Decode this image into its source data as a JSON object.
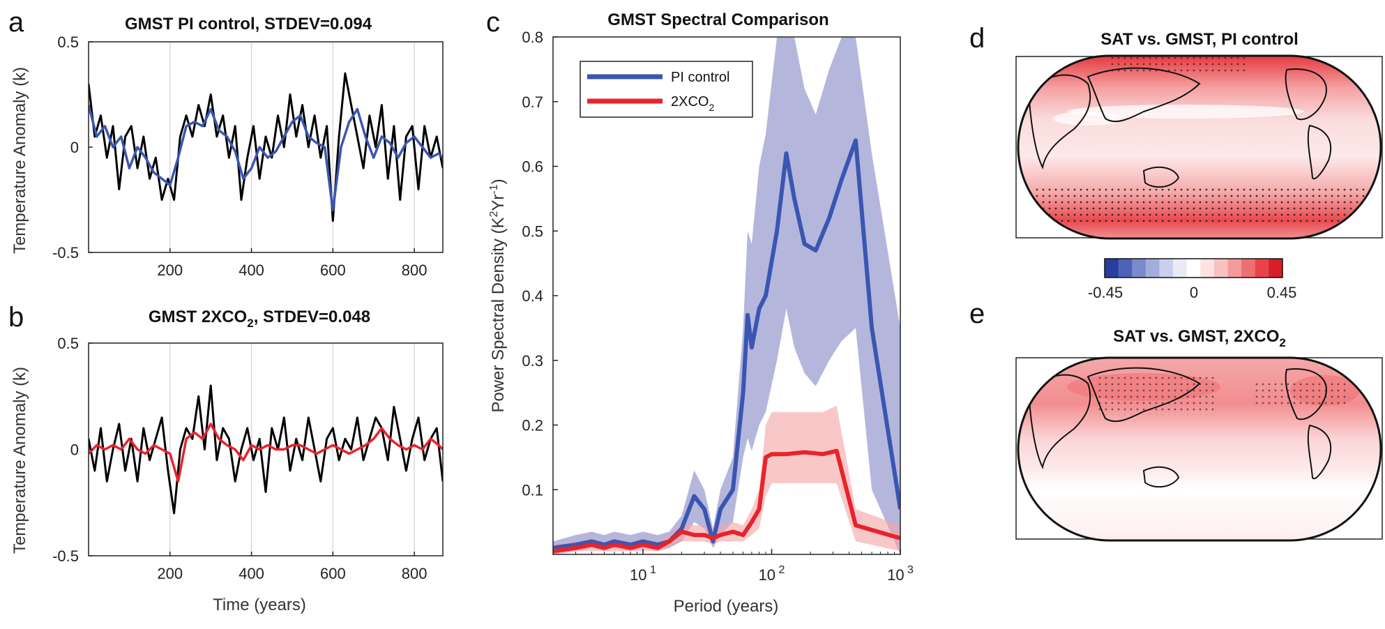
{
  "panels": {
    "a": "a",
    "b": "b",
    "c": "c",
    "d": "d",
    "e": "e"
  },
  "chart_data": [
    {
      "id": "a",
      "type": "line",
      "title": "GMST PI control, STDEV=0.094",
      "xlabel": "",
      "ylabel": "Temperature Anomaly (k)",
      "xlim": [
        0,
        870
      ],
      "ylim": [
        -0.5,
        0.5
      ],
      "xticks": [
        200,
        400,
        600,
        800
      ],
      "yticks": [
        -0.5,
        0,
        0.5
      ],
      "ytick_labels": [
        "-0.5",
        "0",
        "0.5"
      ],
      "grid": "vertical",
      "series": [
        {
          "role": "annual",
          "color": "#000000",
          "x": [
            0,
            15,
            30,
            45,
            60,
            75,
            90,
            105,
            120,
            135,
            150,
            165,
            180,
            195,
            210,
            225,
            240,
            255,
            270,
            285,
            300,
            315,
            330,
            345,
            360,
            375,
            390,
            405,
            420,
            435,
            450,
            465,
            480,
            495,
            510,
            525,
            540,
            555,
            570,
            585,
            600,
            615,
            630,
            645,
            660,
            675,
            690,
            705,
            720,
            735,
            750,
            765,
            780,
            795,
            810,
            825,
            840,
            855,
            870
          ],
          "y": [
            0.3,
            0.05,
            0.15,
            -0.05,
            0.1,
            -0.2,
            0.05,
            0.1,
            -0.1,
            0.05,
            -0.15,
            -0.05,
            -0.25,
            -0.15,
            -0.25,
            0.05,
            0.15,
            0.05,
            0.2,
            0.1,
            0.25,
            0.05,
            0.15,
            -0.05,
            0.1,
            -0.25,
            -0.05,
            0.1,
            -0.15,
            0.05,
            -0.05,
            0.15,
            0.0,
            0.25,
            0.05,
            0.2,
            0.0,
            0.15,
            -0.05,
            0.1,
            -0.35,
            0.05,
            0.35,
            0.2,
            0.05,
            -0.1,
            0.15,
            0.0,
            0.2,
            -0.15,
            0.1,
            -0.25,
            0.05,
            0.1,
            -0.2,
            0.1,
            -0.05,
            0.05,
            -0.1
          ]
        },
        {
          "role": "smoothed",
          "color": "#3a56b0",
          "x": [
            0,
            20,
            40,
            60,
            80,
            100,
            120,
            140,
            160,
            180,
            200,
            220,
            240,
            260,
            280,
            300,
            320,
            340,
            360,
            380,
            400,
            420,
            440,
            460,
            480,
            500,
            520,
            540,
            560,
            580,
            600,
            620,
            640,
            660,
            680,
            700,
            720,
            740,
            760,
            780,
            800,
            820,
            840,
            860,
            870
          ],
          "y": [
            0.2,
            0.05,
            0.1,
            0.0,
            0.05,
            -0.1,
            0.0,
            -0.05,
            -0.12,
            -0.15,
            -0.18,
            -0.05,
            0.1,
            0.12,
            0.1,
            0.18,
            0.08,
            0.05,
            -0.02,
            -0.15,
            -0.1,
            0.0,
            -0.05,
            -0.02,
            0.05,
            0.12,
            0.15,
            0.05,
            0.02,
            0.0,
            -0.3,
            0.0,
            0.12,
            0.18,
            0.05,
            -0.05,
            0.05,
            0.02,
            -0.05,
            0.02,
            0.05,
            0.0,
            -0.05,
            -0.03,
            -0.05
          ]
        }
      ]
    },
    {
      "id": "b",
      "type": "line",
      "title": "GMST 2XCO",
      "title_sub": "2",
      "title_suffix": ", STDEV=0.048",
      "xlabel": "Time (years)",
      "ylabel": "Temperature Anomaly (k)",
      "xlim": [
        0,
        870
      ],
      "ylim": [
        -0.5,
        0.5
      ],
      "xticks": [
        200,
        400,
        600,
        800
      ],
      "yticks": [
        -0.5,
        0,
        0.5
      ],
      "ytick_labels": [
        "-0.5",
        "0",
        "0.5"
      ],
      "grid": "vertical",
      "series": [
        {
          "role": "annual",
          "color": "#000000",
          "x": [
            0,
            15,
            30,
            45,
            60,
            75,
            90,
            105,
            120,
            135,
            150,
            165,
            180,
            195,
            210,
            225,
            240,
            255,
            270,
            285,
            300,
            315,
            330,
            345,
            360,
            375,
            390,
            405,
            420,
            435,
            450,
            465,
            480,
            495,
            510,
            525,
            540,
            555,
            570,
            585,
            600,
            615,
            630,
            645,
            660,
            675,
            690,
            705,
            720,
            735,
            750,
            765,
            780,
            795,
            810,
            825,
            840,
            855,
            870
          ],
          "y": [
            0.05,
            -0.1,
            0.1,
            -0.15,
            0.0,
            0.12,
            -0.1,
            0.05,
            -0.15,
            0.1,
            -0.05,
            0.05,
            0.15,
            -0.1,
            -0.3,
            0.0,
            0.1,
            0.05,
            0.25,
            0.0,
            0.3,
            -0.05,
            0.1,
            0.05,
            -0.15,
            0.0,
            0.1,
            -0.05,
            0.05,
            -0.2,
            0.1,
            0.0,
            0.15,
            -0.1,
            0.05,
            -0.05,
            0.15,
            0.0,
            -0.15,
            0.05,
            0.1,
            -0.05,
            0.05,
            0.0,
            0.15,
            -0.05,
            0.05,
            0.15,
            0.1,
            -0.05,
            0.2,
            0.05,
            -0.1,
            0.05,
            0.15,
            -0.05,
            0.05,
            0.1,
            -0.15
          ]
        },
        {
          "role": "smoothed",
          "color": "#e8232b",
          "x": [
            0,
            20,
            40,
            60,
            80,
            100,
            120,
            140,
            160,
            180,
            200,
            220,
            240,
            260,
            280,
            300,
            320,
            340,
            360,
            380,
            400,
            420,
            440,
            460,
            480,
            500,
            520,
            540,
            560,
            580,
            600,
            620,
            640,
            660,
            680,
            700,
            720,
            740,
            760,
            780,
            800,
            820,
            840,
            860,
            870
          ],
          "y": [
            -0.02,
            0.02,
            0.0,
            0.02,
            0.0,
            0.05,
            0.0,
            -0.02,
            0.02,
            0.0,
            -0.02,
            -0.15,
            0.05,
            0.08,
            0.05,
            0.12,
            0.05,
            0.02,
            0.0,
            -0.05,
            0.02,
            0.0,
            0.02,
            0.0,
            0.0,
            0.02,
            0.02,
            0.0,
            -0.02,
            0.0,
            0.02,
            0.0,
            -0.02,
            0.0,
            0.02,
            0.05,
            0.1,
            0.05,
            0.02,
            0.0,
            0.02,
            0.0,
            0.05,
            0.02,
            0.0
          ]
        }
      ]
    },
    {
      "id": "c",
      "type": "line",
      "title": "GMST Spectral Comparison",
      "xlabel": "Period (years)",
      "ylabel": "Power Spectral Density (K",
      "ylabel_sup1": "2",
      "ylabel_mid": "Yr",
      "ylabel_sup2": "-1",
      "ylabel_end": ")",
      "xscale": "log",
      "xlim": [
        2,
        1000
      ],
      "ylim": [
        0,
        0.8
      ],
      "xticks": [
        10,
        100,
        1000
      ],
      "xtick_base": "10",
      "xtick_exp": [
        "1",
        "2",
        "3"
      ],
      "yticks": [
        0.1,
        0.2,
        0.3,
        0.4,
        0.5,
        0.6,
        0.7,
        0.8
      ],
      "ytick_labels": [
        "0.1",
        "0.2",
        "0.3",
        "0.4",
        "0.5",
        "0.6",
        "0.7",
        "0.8"
      ],
      "legend_placement": "top-left",
      "series": [
        {
          "name": "PI control",
          "color": "#3a56b0",
          "band_color": "#8e8fc9",
          "x": [
            2,
            3,
            4,
            5,
            6,
            8,
            10,
            13,
            16,
            20,
            25,
            30,
            35,
            40,
            50,
            60,
            65,
            70,
            80,
            90,
            110,
            130,
            150,
            180,
            220,
            280,
            350,
            450,
            600,
            1000
          ],
          "y": [
            0.01,
            0.015,
            0.02,
            0.015,
            0.02,
            0.015,
            0.02,
            0.015,
            0.02,
            0.04,
            0.09,
            0.07,
            0.02,
            0.07,
            0.1,
            0.25,
            0.37,
            0.32,
            0.38,
            0.4,
            0.5,
            0.62,
            0.55,
            0.48,
            0.47,
            0.52,
            0.58,
            0.64,
            0.35,
            0.07
          ],
          "lower": [
            0.0,
            0.005,
            0.01,
            0.005,
            0.01,
            0.005,
            0.01,
            0.005,
            0.01,
            0.02,
            0.05,
            0.04,
            0.01,
            0.03,
            0.05,
            0.15,
            0.18,
            0.16,
            0.2,
            0.22,
            0.3,
            0.38,
            0.32,
            0.28,
            0.26,
            0.3,
            0.33,
            0.35,
            0.1,
            0.0
          ],
          "upper": [
            0.02,
            0.03,
            0.035,
            0.03,
            0.035,
            0.03,
            0.035,
            0.03,
            0.035,
            0.06,
            0.13,
            0.1,
            0.04,
            0.1,
            0.15,
            0.35,
            0.5,
            0.48,
            0.6,
            0.65,
            0.8,
            0.8,
            0.8,
            0.72,
            0.68,
            0.75,
            0.8,
            0.8,
            0.62,
            0.35
          ]
        },
        {
          "name": "2XCO",
          "name_sub": "2",
          "color": "#e8232b",
          "band_color": "#f4a3a5",
          "x": [
            2,
            3,
            4,
            5,
            6,
            8,
            10,
            13,
            16,
            20,
            25,
            30,
            35,
            40,
            50,
            60,
            70,
            80,
            90,
            100,
            130,
            180,
            250,
            320,
            450,
            1000
          ],
          "y": [
            0.005,
            0.01,
            0.015,
            0.01,
            0.015,
            0.01,
            0.015,
            0.01,
            0.02,
            0.035,
            0.03,
            0.03,
            0.025,
            0.03,
            0.035,
            0.03,
            0.05,
            0.07,
            0.15,
            0.155,
            0.155,
            0.158,
            0.155,
            0.16,
            0.045,
            0.025
          ],
          "lower": [
            0.0,
            0.005,
            0.005,
            0.005,
            0.005,
            0.005,
            0.005,
            0.005,
            0.01,
            0.02,
            0.02,
            0.02,
            0.015,
            0.02,
            0.02,
            0.02,
            0.03,
            0.04,
            0.09,
            0.11,
            0.11,
            0.11,
            0.11,
            0.11,
            0.02,
            0.005
          ],
          "upper": [
            0.015,
            0.02,
            0.025,
            0.02,
            0.025,
            0.02,
            0.025,
            0.02,
            0.03,
            0.05,
            0.045,
            0.045,
            0.04,
            0.045,
            0.05,
            0.045,
            0.07,
            0.1,
            0.2,
            0.22,
            0.22,
            0.22,
            0.22,
            0.23,
            0.07,
            0.045
          ]
        }
      ]
    },
    {
      "id": "d",
      "type": "heatmap",
      "title": "SAT vs. GMST, PI control",
      "colorbar": {
        "min_label": "-0.45",
        "mid_label": "0",
        "max_label": "0.45",
        "colors": [
          "#2a3d9e",
          "#4d63b8",
          "#7a8acb",
          "#a3addc",
          "#c9cfec",
          "#e8eaf6",
          "#ffffff",
          "#fde3e2",
          "#f9c2c2",
          "#f49a9b",
          "#ee6f71",
          "#e8434a",
          "#d61f26"
        ]
      }
    },
    {
      "id": "e",
      "type": "heatmap",
      "title": "SAT vs. GMST, 2XCO",
      "title_sub": "2"
    }
  ]
}
